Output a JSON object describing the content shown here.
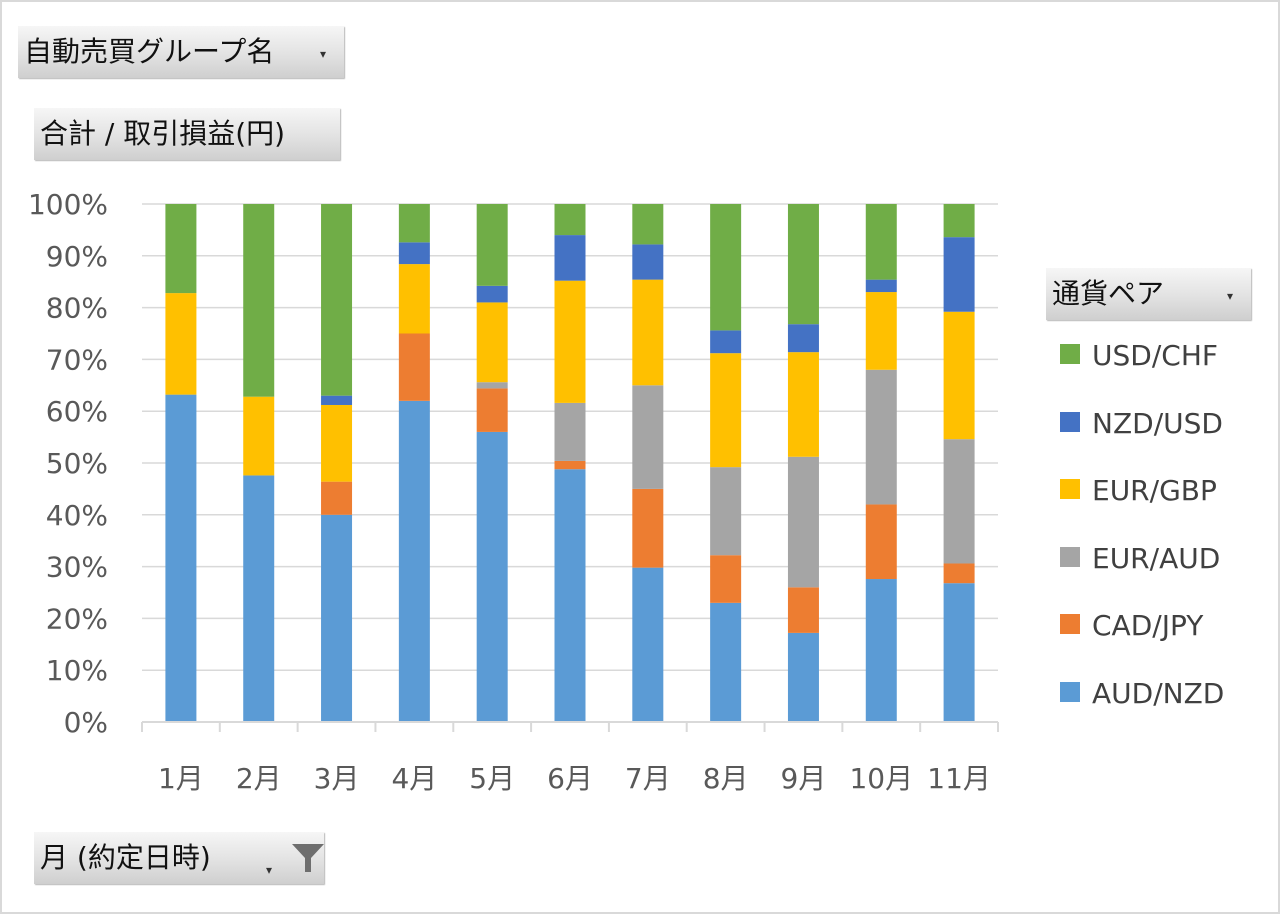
{
  "pivot": {
    "group_field": "自動売買グループ名",
    "value_field": "合計 / 取引損益(円)",
    "axis_field": "月 (約定日時)",
    "legend_field": "通貨ペア"
  },
  "icons": {
    "dropdown": "dropdown-arrow-icon",
    "filter": "filter-funnel-icon"
  },
  "colors": {
    "AUD/NZD": "#5B9BD5",
    "CAD/JPY": "#ED7D31",
    "EUR/AUD": "#A5A5A5",
    "EUR/GBP": "#FFC000",
    "NZD/USD": "#4472C4",
    "USD/CHF": "#70AD47",
    "gridline": "#d9d9d9",
    "axis_text": "#595959"
  },
  "chart_data": {
    "type": "bar",
    "stacked": "percent",
    "categories": [
      "1月",
      "2月",
      "3月",
      "4月",
      "5月",
      "6月",
      "7月",
      "8月",
      "9月",
      "10月",
      "11月"
    ],
    "series": [
      {
        "name": "AUD/NZD",
        "values": [
          63.2,
          47.6,
          40.0,
          62.0,
          56.0,
          48.8,
          29.8,
          23.0,
          17.2,
          27.6,
          26.8
        ]
      },
      {
        "name": "CAD/JPY",
        "values": [
          0.0,
          0.0,
          6.4,
          13.0,
          8.4,
          1.6,
          15.2,
          9.2,
          8.8,
          14.4,
          3.8
        ]
      },
      {
        "name": "EUR/AUD",
        "values": [
          0.0,
          0.0,
          0.0,
          0.0,
          1.2,
          11.2,
          20.0,
          17.0,
          25.2,
          26.0,
          24.0
        ]
      },
      {
        "name": "EUR/GBP",
        "values": [
          19.6,
          15.2,
          14.8,
          13.4,
          15.4,
          23.6,
          20.4,
          22.0,
          20.2,
          15.0,
          24.6
        ]
      },
      {
        "name": "NZD/USD",
        "values": [
          0.0,
          0.0,
          1.8,
          4.2,
          3.2,
          8.8,
          6.8,
          4.4,
          5.4,
          2.4,
          14.4
        ]
      },
      {
        "name": "USD/CHF",
        "values": [
          17.2,
          37.2,
          37.0,
          7.4,
          15.8,
          6.0,
          7.8,
          24.4,
          23.2,
          14.6,
          6.4
        ]
      }
    ],
    "y_ticks": [
      "0%",
      "10%",
      "20%",
      "30%",
      "40%",
      "50%",
      "60%",
      "70%",
      "80%",
      "90%",
      "100%"
    ],
    "ylim": [
      0,
      100
    ],
    "grid": true,
    "legend_position": "right",
    "legend_order": [
      "USD/CHF",
      "NZD/USD",
      "EUR/GBP",
      "EUR/AUD",
      "CAD/JPY",
      "AUD/NZD"
    ]
  }
}
